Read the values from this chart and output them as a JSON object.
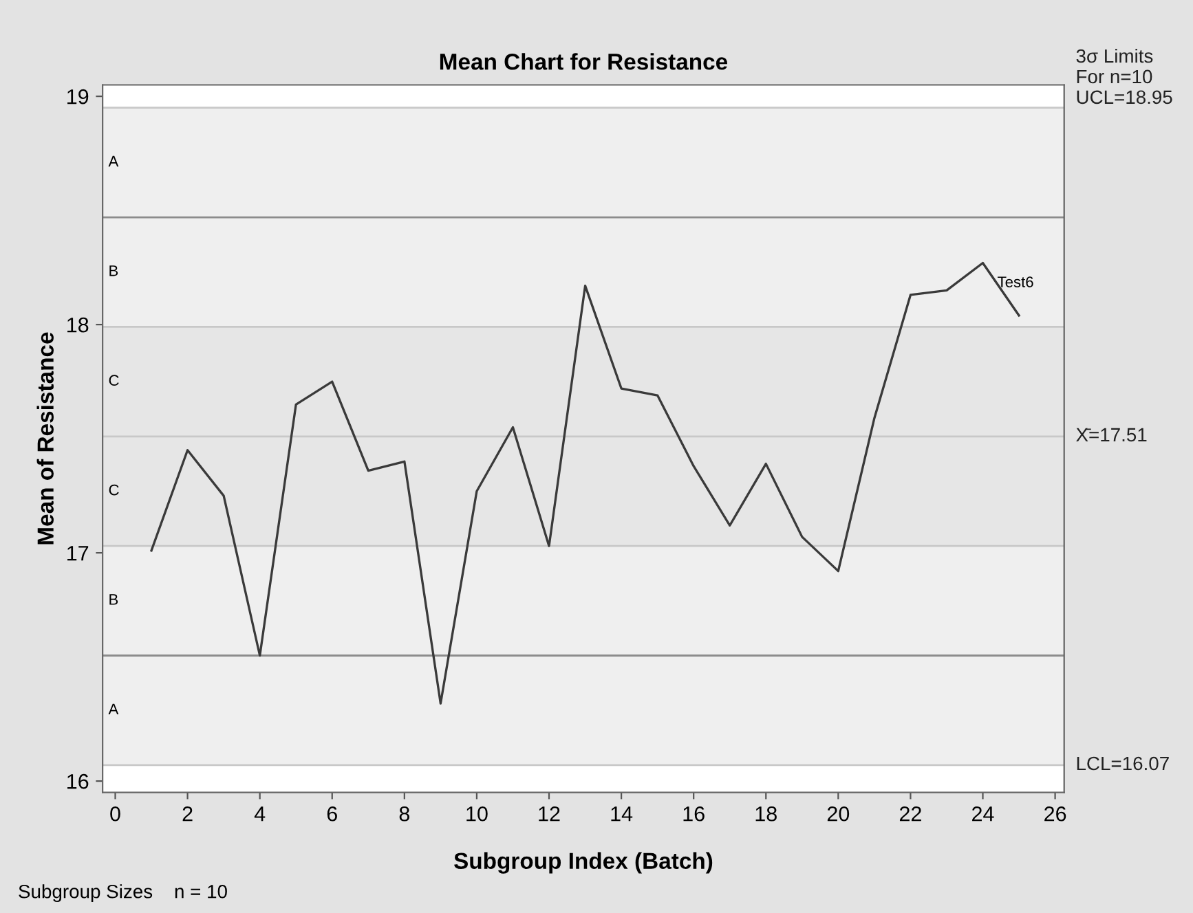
{
  "chart_data": {
    "type": "line",
    "title": "Mean Chart for Resistance",
    "xlabel": "Subgroup Index (Batch)",
    "ylabel": "Mean of Resistance",
    "x": [
      1,
      2,
      3,
      4,
      5,
      6,
      7,
      8,
      9,
      10,
      11,
      12,
      13,
      14,
      15,
      16,
      17,
      18,
      19,
      20,
      21,
      22,
      23,
      24,
      25
    ],
    "series": [
      {
        "color": "#3a3a3a",
        "values": [
          17.01,
          17.45,
          17.25,
          16.55,
          17.65,
          17.75,
          17.36,
          17.4,
          16.34,
          17.27,
          17.55,
          17.03,
          18.17,
          17.72,
          17.69,
          17.38,
          17.12,
          17.39,
          17.07,
          16.92,
          17.59,
          18.13,
          18.15,
          18.27,
          18.04
        ]
      }
    ],
    "xlim": [
      -0.35,
      26.25
    ],
    "ylim": [
      15.95,
      19.05
    ],
    "xticks": [
      0,
      2,
      4,
      6,
      8,
      10,
      12,
      14,
      16,
      18,
      20,
      22,
      24,
      26
    ],
    "yticks": [
      16,
      17,
      18,
      19
    ],
    "bands": [
      {
        "axis": "y",
        "from": 16.07,
        "to": 17.03,
        "color": "#efefef"
      },
      {
        "axis": "y",
        "from": 17.03,
        "to": 17.99,
        "color": "#e6e6e6"
      },
      {
        "axis": "y",
        "from": 17.99,
        "to": 18.95,
        "color": "#efefef"
      }
    ],
    "ref_lines": [
      {
        "axis": "y",
        "value": 18.95,
        "label": "3σ Limits\nFor n=10\nUCL=18.95",
        "color": "#c8c8c8"
      },
      {
        "axis": "y",
        "value": 18.47,
        "color": "#8c8c8c"
      },
      {
        "axis": "y",
        "value": 17.99,
        "color": "#c8c8c8"
      },
      {
        "axis": "y",
        "value": 17.51,
        "label": "X̄=17.51",
        "color": "#c8c8c8"
      },
      {
        "axis": "y",
        "value": 17.03,
        "color": "#c8c8c8"
      },
      {
        "axis": "y",
        "value": 16.55,
        "color": "#8c8c8c"
      },
      {
        "axis": "y",
        "value": 16.07,
        "label": "LCL=16.07",
        "color": "#c8c8c8"
      }
    ],
    "annotations": [
      "A",
      "B",
      "C",
      "C",
      "B",
      "A",
      {
        "text": "Test6",
        "x": 24.4,
        "y": 18.15
      },
      "Subgroup Sizes    n = 10"
    ],
    "grid": false,
    "legend": false,
    "marker": "none",
    "line_style": "solid"
  }
}
